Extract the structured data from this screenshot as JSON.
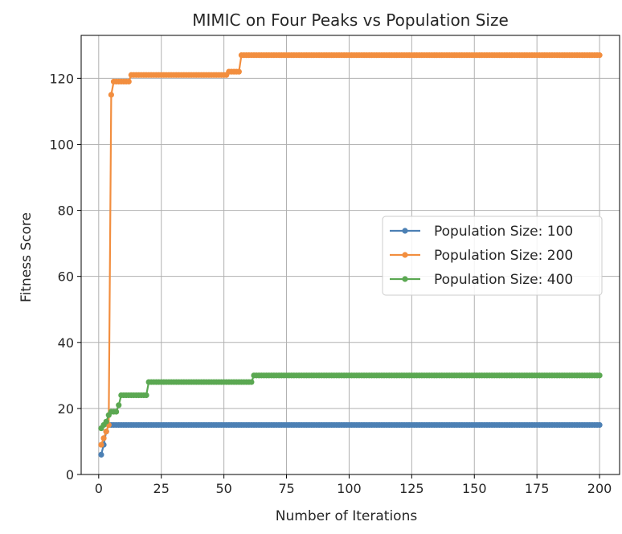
{
  "chart_data": {
    "type": "line",
    "title": "MIMIC on Four Peaks vs Population Size",
    "xlabel": "Number of Iterations",
    "ylabel": "Fitness Score",
    "xlim": [
      -7,
      208
    ],
    "ylim": [
      0,
      133
    ],
    "xticks": [
      0,
      25,
      50,
      75,
      100,
      125,
      150,
      175,
      200
    ],
    "yticks": [
      0,
      20,
      40,
      60,
      80,
      100,
      120
    ],
    "grid": true,
    "legend_position": "center-right",
    "series": [
      {
        "name": "Population Size: 100",
        "color": "#4c80b4",
        "steps": [
          [
            1,
            6
          ],
          [
            2,
            9
          ],
          [
            3,
            13
          ],
          [
            4,
            15
          ],
          [
            200,
            15
          ]
        ]
      },
      {
        "name": "Population Size: 200",
        "color": "#f28e3f",
        "steps": [
          [
            1,
            9
          ],
          [
            2,
            11
          ],
          [
            3,
            13
          ],
          [
            4,
            15
          ],
          [
            5,
            115
          ],
          [
            6,
            119
          ],
          [
            13,
            121
          ],
          [
            52,
            122
          ],
          [
            57,
            127
          ],
          [
            200,
            127
          ]
        ]
      },
      {
        "name": "Population Size: 400",
        "color": "#5ba852",
        "steps": [
          [
            1,
            14
          ],
          [
            2,
            15
          ],
          [
            3,
            16
          ],
          [
            4,
            18
          ],
          [
            5,
            19
          ],
          [
            8,
            21
          ],
          [
            9,
            24
          ],
          [
            20,
            28
          ],
          [
            62,
            30
          ],
          [
            200,
            30
          ]
        ]
      }
    ]
  }
}
